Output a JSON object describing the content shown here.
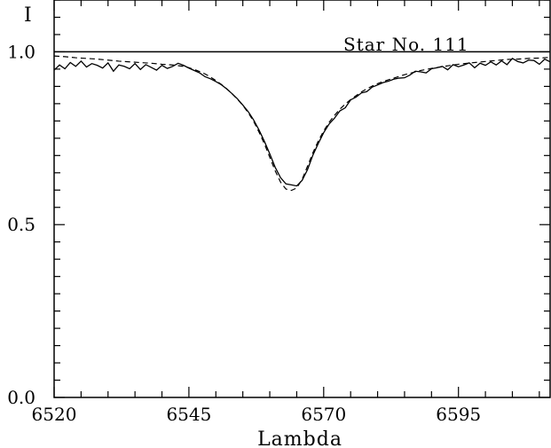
{
  "chart_data": {
    "type": "line",
    "title": "Star No. 111",
    "xlabel": "Lambda",
    "ylabel": "I",
    "xlim": [
      6520,
      6612
    ],
    "ylim": [
      0.0,
      1.15
    ],
    "x_ticks": [
      6520,
      6545,
      6570,
      6595
    ],
    "x_tick_labels": [
      "6520",
      "6545",
      "6570",
      "6595"
    ],
    "y_ticks": [
      0.0,
      0.5,
      1.0
    ],
    "y_tick_labels": [
      "0.0",
      "0.5",
      "1.0"
    ],
    "grid": false,
    "reference_line": {
      "y": 1.0
    },
    "series": [
      {
        "style": "solid",
        "x": [
          6520,
          6521,
          6522,
          6523,
          6524,
          6525,
          6526,
          6527,
          6528,
          6529,
          6530,
          6531,
          6532,
          6533,
          6534,
          6535,
          6536,
          6537,
          6538,
          6539,
          6540,
          6541,
          6542,
          6543,
          6544,
          6545,
          6546,
          6547,
          6548,
          6549,
          6550,
          6551,
          6552,
          6553,
          6554,
          6555,
          6556,
          6557,
          6558,
          6559,
          6560,
          6561,
          6562,
          6563,
          6564,
          6565,
          6566,
          6567,
          6568,
          6569,
          6570,
          6571,
          6572,
          6573,
          6574,
          6575,
          6576,
          6577,
          6578,
          6579,
          6580,
          6581,
          6582,
          6583,
          6584,
          6585,
          6586,
          6587,
          6588,
          6589,
          6590,
          6591,
          6592,
          6593,
          6594,
          6595,
          6596,
          6597,
          6598,
          6599,
          6600,
          6601,
          6602,
          6603,
          6604,
          6605,
          6606,
          6607,
          6608,
          6609,
          6610,
          6611,
          6612
        ],
        "y": [
          0.947,
          0.962,
          0.951,
          0.969,
          0.958,
          0.973,
          0.956,
          0.966,
          0.961,
          0.953,
          0.968,
          0.944,
          0.962,
          0.958,
          0.951,
          0.966,
          0.949,
          0.963,
          0.955,
          0.947,
          0.961,
          0.952,
          0.958,
          0.967,
          0.961,
          0.953,
          0.946,
          0.939,
          0.928,
          0.922,
          0.914,
          0.905,
          0.893,
          0.879,
          0.864,
          0.846,
          0.827,
          0.803,
          0.774,
          0.741,
          0.705,
          0.666,
          0.636,
          0.618,
          0.615,
          0.612,
          0.628,
          0.659,
          0.701,
          0.735,
          0.766,
          0.791,
          0.808,
          0.829,
          0.838,
          0.861,
          0.869,
          0.881,
          0.885,
          0.898,
          0.904,
          0.911,
          0.915,
          0.921,
          0.924,
          0.925,
          0.933,
          0.944,
          0.942,
          0.939,
          0.951,
          0.954,
          0.958,
          0.948,
          0.963,
          0.957,
          0.962,
          0.968,
          0.954,
          0.967,
          0.961,
          0.971,
          0.962,
          0.974,
          0.963,
          0.981,
          0.972,
          0.968,
          0.976,
          0.975,
          0.964,
          0.979,
          0.971
        ]
      },
      {
        "style": "dashed",
        "x": [
          6520,
          6522,
          6524,
          6526,
          6528,
          6530,
          6532,
          6534,
          6536,
          6538,
          6540,
          6542,
          6544,
          6545,
          6546,
          6547,
          6548,
          6549,
          6550,
          6551,
          6552,
          6553,
          6554,
          6555,
          6556,
          6557,
          6558,
          6559,
          6560,
          6561,
          6562,
          6563,
          6564,
          6565,
          6566,
          6567,
          6568,
          6569,
          6570,
          6571,
          6572,
          6573,
          6574,
          6575,
          6576,
          6577,
          6578,
          6579,
          6580,
          6581,
          6582,
          6583,
          6584,
          6585,
          6586,
          6587,
          6588,
          6589,
          6590,
          6592,
          6594,
          6596,
          6598,
          6600,
          6602,
          6604,
          6606,
          6608,
          6610,
          6612
        ],
        "y": [
          0.988,
          0.986,
          0.983,
          0.981,
          0.979,
          0.976,
          0.973,
          0.971,
          0.969,
          0.967,
          0.964,
          0.962,
          0.958,
          0.954,
          0.949,
          0.943,
          0.936,
          0.927,
          0.917,
          0.906,
          0.893,
          0.879,
          0.863,
          0.845,
          0.824,
          0.799,
          0.768,
          0.734,
          0.695,
          0.656,
          0.623,
          0.603,
          0.599,
          0.606,
          0.631,
          0.669,
          0.708,
          0.742,
          0.771,
          0.796,
          0.816,
          0.834,
          0.849,
          0.862,
          0.873,
          0.884,
          0.893,
          0.901,
          0.908,
          0.914,
          0.919,
          0.924,
          0.929,
          0.934,
          0.938,
          0.942,
          0.946,
          0.949,
          0.952,
          0.957,
          0.962,
          0.966,
          0.969,
          0.972,
          0.975,
          0.978,
          0.979,
          0.981,
          0.982,
          0.984
        ]
      }
    ]
  }
}
